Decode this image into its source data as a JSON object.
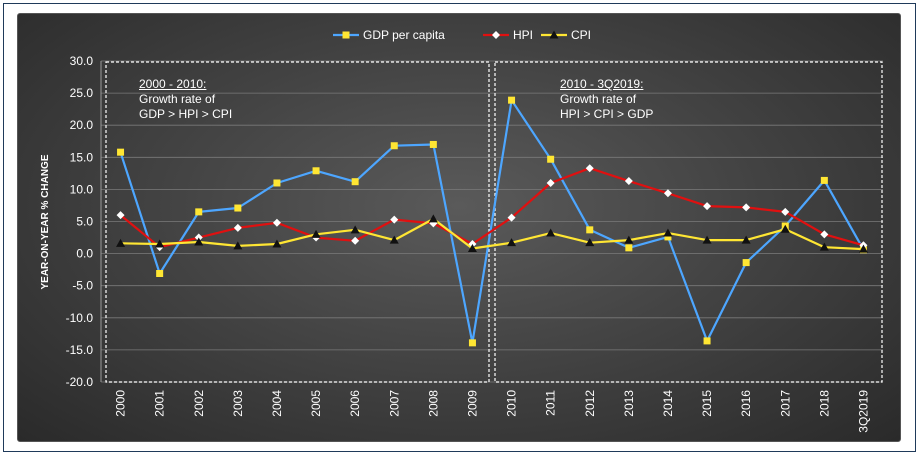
{
  "chart_data": {
    "type": "line",
    "categories": [
      "2000",
      "2001",
      "2002",
      "2003",
      "2004",
      "2005",
      "2006",
      "2007",
      "2008",
      "2009",
      "2010",
      "2011",
      "2012",
      "2013",
      "2014",
      "2015",
      "2016",
      "2017",
      "2018",
      "3Q2019"
    ],
    "series": [
      {
        "name": "GDP per capita",
        "color": "#4da6ff",
        "marker": "square",
        "marker_color": "#ffe633",
        "values": [
          15.8,
          -3.1,
          6.5,
          7.1,
          11.0,
          12.9,
          11.2,
          16.8,
          17.0,
          -13.9,
          23.9,
          14.7,
          3.7,
          0.9,
          2.6,
          -13.6,
          -1.4,
          4.3,
          11.4,
          0.6
        ]
      },
      {
        "name": "HPI",
        "color": "#e01010",
        "marker": "diamond",
        "marker_color": "#ffffff",
        "values": [
          6.0,
          1.0,
          2.5,
          4.0,
          4.8,
          2.5,
          2.0,
          5.3,
          4.7,
          1.5,
          5.6,
          11.0,
          13.3,
          11.3,
          9.4,
          7.4,
          7.2,
          6.5,
          3.0,
          1.3
        ]
      },
      {
        "name": "CPI",
        "color": "#ffe633",
        "marker": "triangle",
        "marker_color": "#111111",
        "values": [
          1.6,
          1.5,
          1.8,
          1.2,
          1.5,
          3.0,
          3.7,
          2.1,
          5.4,
          0.8,
          1.7,
          3.2,
          1.7,
          2.1,
          3.2,
          2.1,
          2.1,
          3.8,
          1.0,
          0.7
        ]
      }
    ],
    "ylabel": "YEAR-ON-YEAR % CHANGE",
    "ylim": [
      -20,
      30
    ],
    "yticks": [
      "30.0",
      "25.0",
      "20.0",
      "15.0",
      "10.0",
      "5.0",
      "0.0",
      "-5.0",
      "-10.0",
      "-15.0",
      "-20.0"
    ],
    "legend_position": "top-center",
    "annotations": [
      {
        "lines": [
          "2000 - 2010:",
          "Growth rate of",
          "GDP > HPI > CPI"
        ]
      },
      {
        "lines": [
          "2010 - 3Q2019:",
          "Growth rate of",
          "HPI > CPI > GDP"
        ]
      }
    ]
  }
}
